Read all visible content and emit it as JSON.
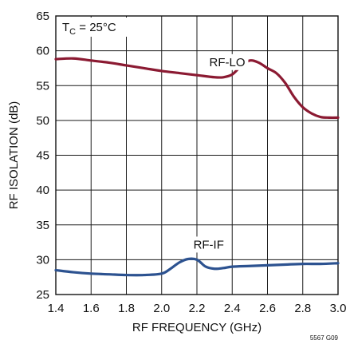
{
  "chart_data": {
    "type": "line",
    "xlabel": "RF FREQUENCY (GHz)",
    "ylabel": "RF ISOLATION (dB)",
    "xlim": [
      1.4,
      3.0
    ],
    "ylim": [
      25,
      65
    ],
    "x_ticks": [
      "1.4",
      "1.6",
      "1.8",
      "2.0",
      "2.2",
      "2.4",
      "2.6",
      "2.8",
      "3.0"
    ],
    "y_ticks": [
      "25",
      "30",
      "35",
      "40",
      "45",
      "50",
      "55",
      "60",
      "65"
    ],
    "grid": true,
    "annotation": {
      "main": "T",
      "sub": "C",
      "rest": " = 25°C"
    },
    "figure_id": "5567 G09",
    "series": [
      {
        "name": "RF-LO",
        "color": "#8b1a32",
        "x": [
          1.4,
          1.5,
          1.6,
          1.7,
          1.8,
          1.9,
          2.0,
          2.1,
          2.2,
          2.3,
          2.35,
          2.4,
          2.45,
          2.5,
          2.55,
          2.6,
          2.65,
          2.7,
          2.75,
          2.8,
          2.85,
          2.9,
          2.95,
          3.0
        ],
        "y": [
          58.8,
          58.9,
          58.6,
          58.3,
          57.9,
          57.5,
          57.1,
          56.8,
          56.5,
          56.2,
          56.2,
          56.6,
          57.8,
          58.6,
          58.3,
          57.5,
          56.8,
          55.4,
          53.4,
          51.9,
          51.0,
          50.5,
          50.4,
          50.4
        ],
        "label_text": "RF-LO",
        "label_at": [
          2.27,
          57.8
        ]
      },
      {
        "name": "RF-IF",
        "color": "#2c5290",
        "x": [
          1.4,
          1.5,
          1.6,
          1.7,
          1.8,
          1.9,
          2.0,
          2.05,
          2.1,
          2.15,
          2.2,
          2.25,
          2.3,
          2.35,
          2.4,
          2.5,
          2.6,
          2.7,
          2.8,
          2.9,
          3.0
        ],
        "y": [
          28.5,
          28.2,
          28.0,
          27.9,
          27.8,
          27.8,
          28.0,
          28.7,
          29.6,
          30.1,
          30.0,
          29.0,
          28.7,
          28.8,
          29.0,
          29.1,
          29.2,
          29.3,
          29.4,
          29.4,
          29.5
        ],
        "label_text": "RF-IF",
        "label_at": [
          2.18,
          31.6
        ]
      }
    ]
  }
}
